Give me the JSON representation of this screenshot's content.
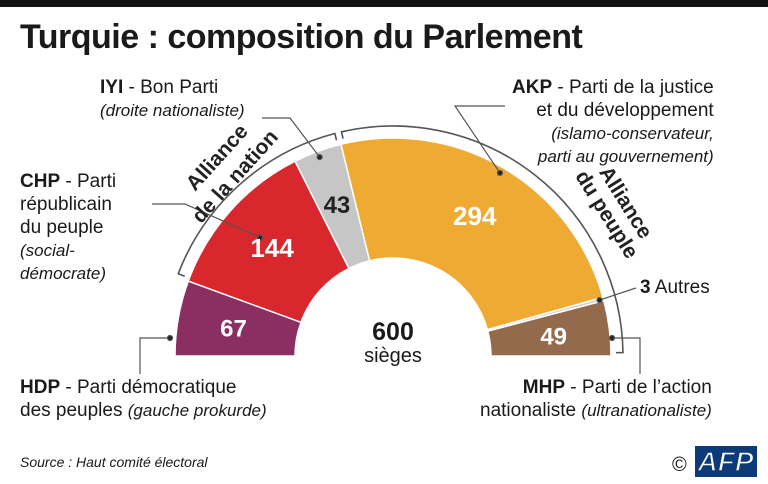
{
  "title": "Turquie : composition du Parlement",
  "total": {
    "value": "600",
    "label": "sièges"
  },
  "parties": {
    "hdp": {
      "abbr": "HDP",
      "name": " - Parti démocratique",
      "name2": "des peuples",
      "desc": "(gauche prokurde)"
    },
    "chp": {
      "abbr": "CHP",
      "name": " - Parti",
      "name2": "républicain",
      "name3": "du peuple",
      "desc1": "(social-",
      "desc2": "démocrate)"
    },
    "iyi": {
      "abbr": "IYI",
      "name": " - Bon Parti",
      "desc": "(droite nationaliste)"
    },
    "akp": {
      "abbr": "AKP",
      "name": " - Parti de la justice",
      "name2": "et du développement",
      "desc1": "(islamo-conservateur,",
      "desc2": "parti au gouvernement)"
    },
    "mhp": {
      "abbr": "MHP",
      "name": " - Parti de l’action",
      "name2": "nationaliste",
      "desc": "(ultranationaliste)"
    },
    "autres": {
      "value": "3",
      "name": " Autres"
    }
  },
  "alliances": {
    "nation": {
      "line1": "Alliance",
      "line2": "de la nation"
    },
    "peuple": {
      "line1": "Alliance",
      "line2": "du peuple"
    }
  },
  "source": "Source : Haut comité électoral",
  "logo": {
    "copyright": "©",
    "name": "AFP"
  },
  "chart_data": {
    "type": "pie",
    "subtype": "hemicycle",
    "title": "Turquie : composition du Parlement",
    "total": 600,
    "categories": [
      "HDP",
      "CHP",
      "IYI",
      "AKP",
      "Autres",
      "MHP"
    ],
    "values": [
      67,
      144,
      43,
      294,
      3,
      49
    ],
    "colors": [
      "#8b2e62",
      "#d9272e",
      "#c6c6c6",
      "#eeaa33",
      "#d6d0c8",
      "#946a4d"
    ],
    "alliances": [
      {
        "name": "Alliance de la nation",
        "members": [
          "CHP",
          "IYI"
        ]
      },
      {
        "name": "Alliance du peuple",
        "members": [
          "AKP",
          "MHP"
        ]
      }
    ]
  }
}
